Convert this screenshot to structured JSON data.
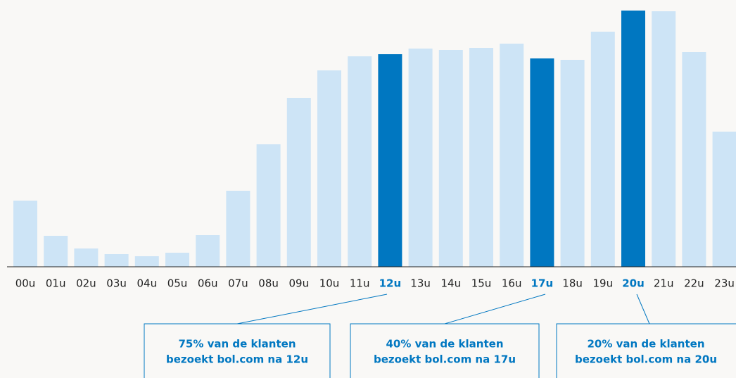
{
  "chart_data": {
    "type": "bar",
    "categories": [
      "00u",
      "01u",
      "02u",
      "03u",
      "04u",
      "05u",
      "06u",
      "07u",
      "08u",
      "09u",
      "10u",
      "11u",
      "12u",
      "13u",
      "14u",
      "15u",
      "16u",
      "17u",
      "18u",
      "19u",
      "20u",
      "21u",
      "22u",
      "23u"
    ],
    "values": [
      94,
      44,
      26,
      18,
      15,
      20,
      45,
      108,
      174,
      240,
      279,
      299,
      302,
      310,
      308,
      311,
      317,
      296,
      294,
      334,
      364,
      363,
      305,
      192
    ],
    "colors": [
      "#cde4f6",
      "#cde4f6",
      "#cde4f6",
      "#cde4f6",
      "#cde4f6",
      "#cde4f6",
      "#cde4f6",
      "#cde4f6",
      "#cde4f6",
      "#cde4f6",
      "#cde4f6",
      "#cde4f6",
      "#0077c1",
      "#cde4f6",
      "#cde4f6",
      "#cde4f6",
      "#cde4f6",
      "#0077c1",
      "#cde4f6",
      "#cde4f6",
      "#0077c1",
      "#cde4f6",
      "#cde4f6",
      "#cde4f6"
    ],
    "ylim": [
      0,
      364
    ],
    "annotations": [
      {
        "lines": [
          "75% van de klanten",
          "bezoekt bol.com na 12u"
        ]
      },
      {
        "lines": [
          "40% van de klanten",
          "bezoekt bol.com na 17u"
        ]
      },
      {
        "lines": [
          "20% van de klanten",
          "bezoekt bol.com na 20u"
        ]
      }
    ]
  }
}
